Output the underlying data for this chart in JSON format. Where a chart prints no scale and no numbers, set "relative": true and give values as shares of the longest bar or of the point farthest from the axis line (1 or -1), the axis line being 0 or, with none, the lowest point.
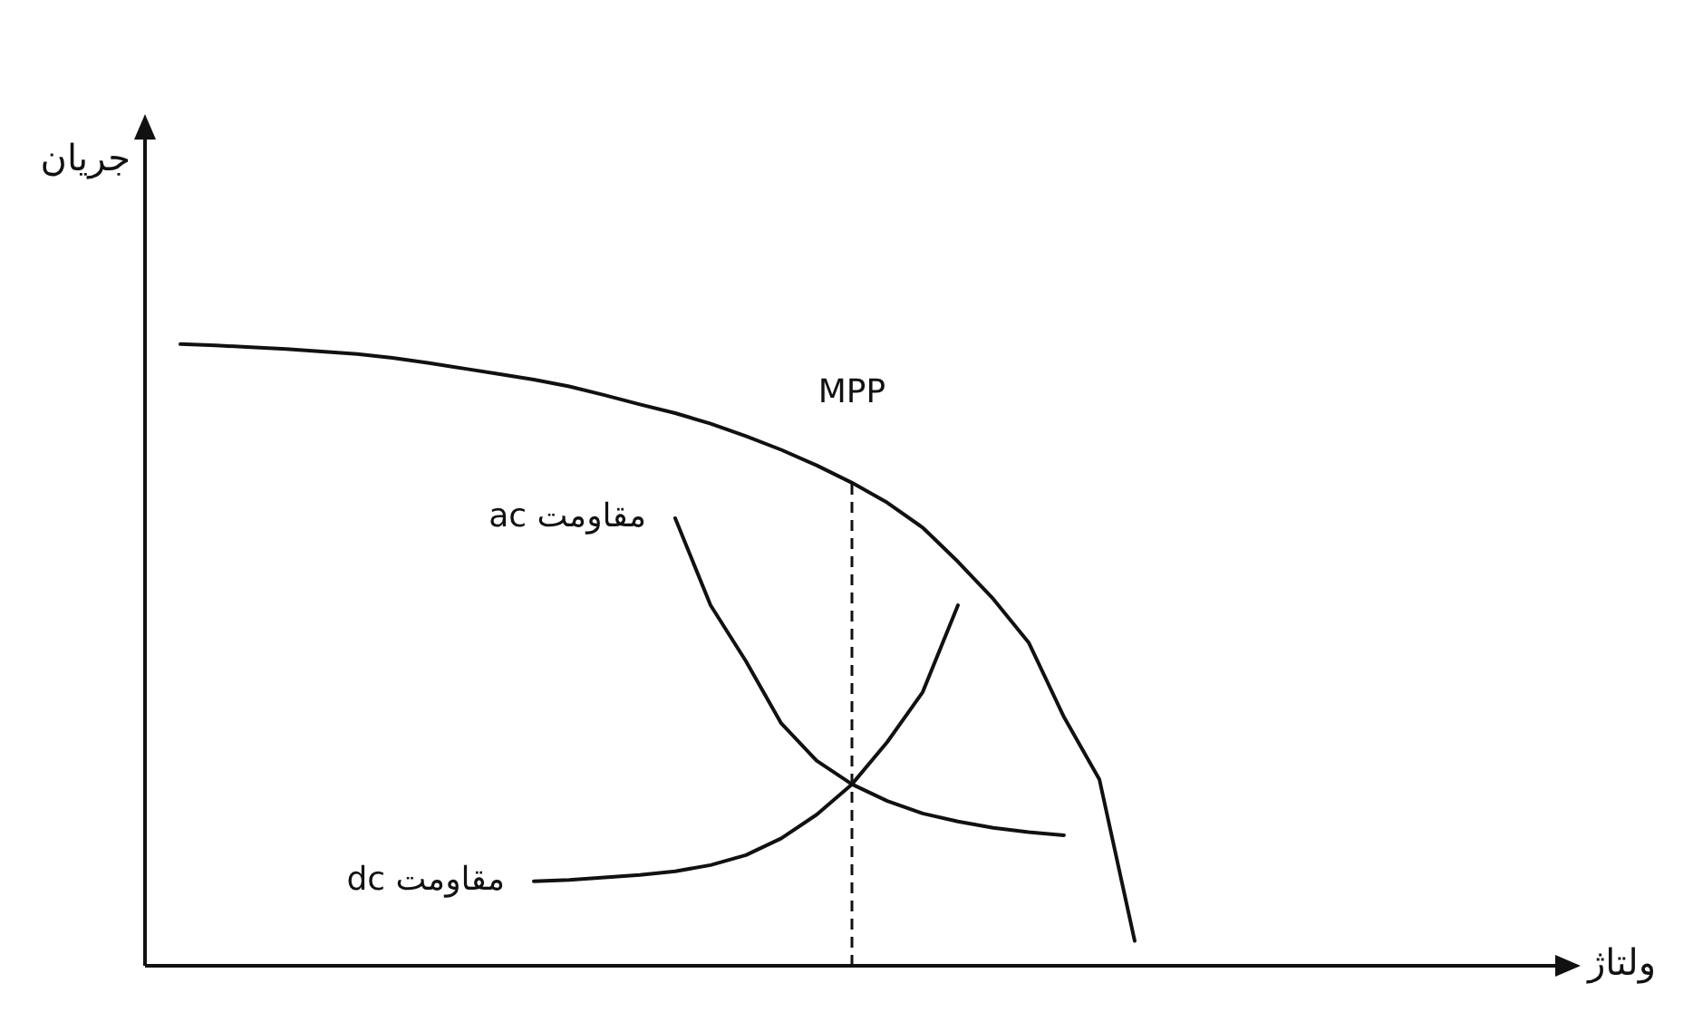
{
  "chart_data": {
    "type": "line",
    "relative": true,
    "xlabel": "ولتاژ",
    "ylabel": "جریان",
    "legend": false,
    "marker": "none",
    "annotations": [
      "MPP"
    ],
    "categories": [
      null,
      null,
      null,
      null,
      null,
      null,
      null,
      null,
      null,
      null,
      null,
      null,
      null,
      null,
      null,
      null,
      null,
      null,
      null,
      null,
      null,
      null,
      null,
      null,
      null,
      null,
      null,
      null,
      null,
      null,
      null,
      null,
      null,
      null,
      null,
      null,
      null,
      null,
      null,
      null,
      null
    ],
    "series": [
      {
        "color": "#111111",
        "values": [
          null,
          1.0,
          0.998,
          0.995,
          0.992,
          0.988,
          0.984,
          0.978,
          0.97,
          0.961,
          0.952,
          0.943,
          0.932,
          0.918,
          0.903,
          0.889,
          0.872,
          0.852,
          0.83,
          0.805,
          0.777,
          0.745,
          0.705,
          0.65,
          0.59,
          0.52,
          0.4,
          0.3,
          0.04,
          null,
          null,
          null,
          null,
          null,
          null,
          null,
          null,
          null,
          null,
          null,
          null
        ]
      },
      {
        "name": "مقاومت ac",
        "color": "#111111",
        "values": [
          null,
          null,
          null,
          null,
          null,
          null,
          null,
          null,
          null,
          null,
          null,
          null,
          null,
          null,
          null,
          0.72,
          0.58,
          0.49,
          0.39,
          0.33,
          0.292,
          0.265,
          0.245,
          0.232,
          0.222,
          0.215,
          0.21,
          null,
          null,
          null,
          null,
          null,
          null,
          null,
          null,
          null,
          null,
          null,
          null,
          null,
          null
        ]
      },
      {
        "name": "مقاومت dc",
        "color": "#111111",
        "values": [
          null,
          null,
          null,
          null,
          null,
          null,
          null,
          null,
          null,
          null,
          null,
          0.136,
          0.138,
          0.142,
          0.146,
          0.152,
          0.162,
          0.178,
          0.205,
          0.243,
          0.292,
          0.36,
          0.44,
          0.58,
          null,
          null,
          null,
          null,
          null,
          null,
          null,
          null,
          null,
          null,
          null,
          null,
          null,
          null,
          null,
          null,
          null
        ]
      }
    ]
  }
}
